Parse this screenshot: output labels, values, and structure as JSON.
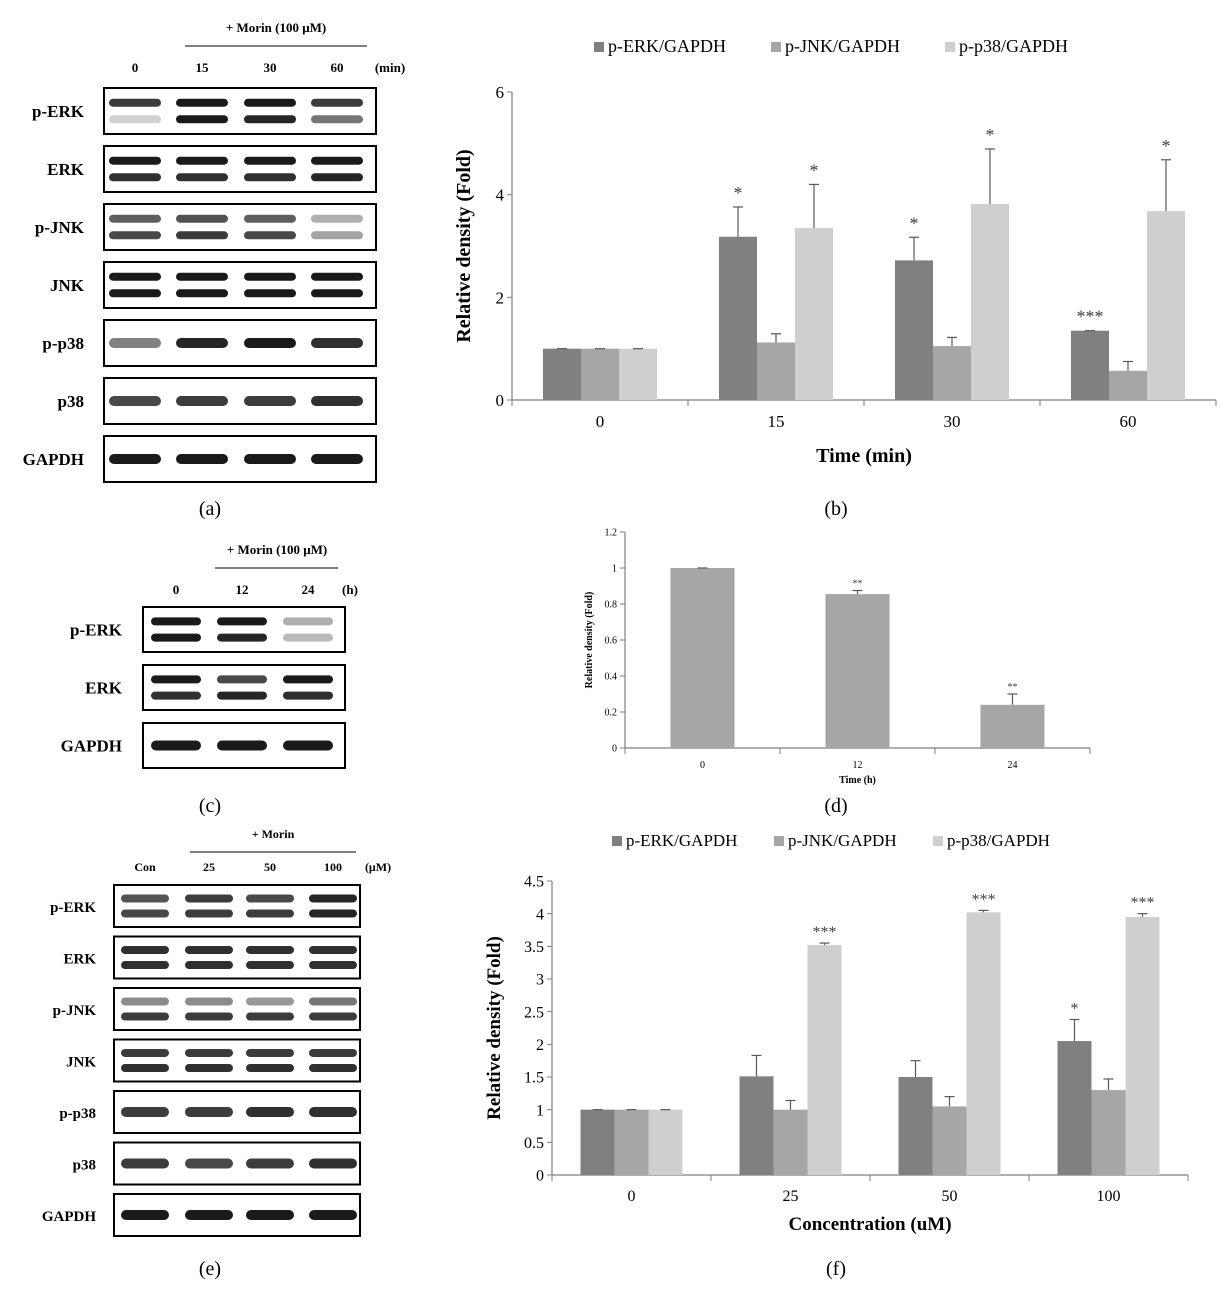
{
  "colors": {
    "erk": "#808080",
    "jnk": "#a6a6a6",
    "p38": "#cfcfcf",
    "axis": "#7f7f7f",
    "band": "#1a1a1a"
  },
  "panel_a": {
    "caption": "(a)",
    "treatment": "+ Morin (100 μM)",
    "unit": "(min)",
    "lanes": [
      "0",
      "15",
      "30",
      "60"
    ],
    "rows": [
      {
        "label": "p-ERK",
        "bands": 2,
        "intensity": [
          0.85,
          1.0,
          1.0,
          0.85
        ],
        "lower": [
          0.2,
          1.0,
          0.95,
          0.6
        ]
      },
      {
        "label": "ERK",
        "bands": 2,
        "intensity": [
          1,
          1,
          1,
          1
        ],
        "lower": [
          0.9,
          0.9,
          0.9,
          0.95
        ]
      },
      {
        "label": "p-JNK",
        "bands": 2,
        "intensity": [
          0.7,
          0.75,
          0.7,
          0.35
        ],
        "lower": [
          0.8,
          0.85,
          0.8,
          0.4
        ]
      },
      {
        "label": "JNK",
        "bands": 2,
        "intensity": [
          1,
          1,
          1,
          1
        ],
        "lower": [
          1,
          1,
          1,
          1
        ]
      },
      {
        "label": "p-p38",
        "bands": 1,
        "intensity": [
          0.55,
          0.95,
          1.0,
          0.9
        ],
        "lower": []
      },
      {
        "label": "p38",
        "bands": 1,
        "intensity": [
          0.8,
          0.85,
          0.85,
          0.9
        ],
        "lower": []
      },
      {
        "label": "GAPDH",
        "bands": 1,
        "intensity": [
          1,
          1,
          1,
          1
        ],
        "lower": []
      }
    ]
  },
  "panel_c": {
    "caption": "(c)",
    "treatment": "+ Morin (100 μM)",
    "unit": "(h)",
    "lanes": [
      "0",
      "12",
      "24"
    ],
    "rows": [
      {
        "label": "p-ERK",
        "bands": 2,
        "intensity": [
          1,
          1,
          0.35
        ],
        "lower": [
          1,
          0.95,
          0.3
        ]
      },
      {
        "label": "ERK",
        "bands": 2,
        "intensity": [
          1,
          0.8,
          1
        ],
        "lower": [
          0.9,
          0.95,
          0.9
        ]
      },
      {
        "label": "GAPDH",
        "bands": 1,
        "intensity": [
          1,
          1,
          1
        ],
        "lower": []
      }
    ]
  },
  "panel_e": {
    "caption": "(e)",
    "treatment": "+ Morin",
    "unit": "(μM)",
    "lanes": [
      "Con",
      "25",
      "50",
      "100"
    ],
    "rows": [
      {
        "label": "p-ERK",
        "bands": 2,
        "intensity": [
          0.75,
          0.85,
          0.8,
          0.95
        ],
        "lower": [
          0.8,
          0.85,
          0.85,
          0.95
        ]
      },
      {
        "label": "ERK",
        "bands": 2,
        "intensity": [
          0.9,
          0.9,
          0.9,
          0.9
        ],
        "lower": [
          0.9,
          0.9,
          0.9,
          0.9
        ]
      },
      {
        "label": "p-JNK",
        "bands": 2,
        "intensity": [
          0.5,
          0.5,
          0.45,
          0.6
        ],
        "lower": [
          0.85,
          0.85,
          0.85,
          0.85
        ]
      },
      {
        "label": "JNK",
        "bands": 2,
        "intensity": [
          0.85,
          0.85,
          0.85,
          0.85
        ],
        "lower": [
          0.9,
          0.9,
          0.9,
          0.9
        ]
      },
      {
        "label": "p-p38",
        "bands": 1,
        "intensity": [
          0.85,
          0.85,
          0.9,
          0.9
        ],
        "lower": []
      },
      {
        "label": "p38",
        "bands": 1,
        "intensity": [
          0.85,
          0.8,
          0.85,
          0.9
        ],
        "lower": []
      },
      {
        "label": "GAPDH",
        "bands": 1,
        "intensity": [
          1,
          1,
          1,
          1
        ],
        "lower": []
      }
    ]
  },
  "chart_data": [
    {
      "id": "b",
      "type": "bar",
      "caption": "(b)",
      "title": "",
      "xlabel": "Time (min)",
      "ylabel": "Relative density (Fold)",
      "categories": [
        "0",
        "15",
        "30",
        "60"
      ],
      "ylim": [
        0,
        6
      ],
      "yticks": [
        "0",
        "2",
        "4",
        "6"
      ],
      "ytick_values": [
        0,
        2,
        4,
        6
      ],
      "legend_position": "top",
      "series": [
        {
          "name": "p-ERK/GAPDH",
          "color_key": "erk",
          "values": [
            1.0,
            3.18,
            2.72,
            1.35
          ],
          "errors": [
            0.0,
            0.58,
            0.45,
            0.0
          ],
          "sig": [
            "",
            "*",
            "*",
            "***"
          ]
        },
        {
          "name": "p-JNK/GAPDH",
          "color_key": "jnk",
          "values": [
            1.0,
            1.12,
            1.05,
            0.57
          ],
          "errors": [
            0.0,
            0.17,
            0.17,
            0.18
          ],
          "sig": [
            "",
            "",
            "",
            ""
          ]
        },
        {
          "name": "p-p38/GAPDH",
          "color_key": "p38",
          "values": [
            1.0,
            3.35,
            3.82,
            3.68
          ],
          "errors": [
            0.0,
            0.85,
            1.07,
            1.0
          ],
          "sig": [
            "",
            "*",
            "*",
            "*"
          ]
        }
      ]
    },
    {
      "id": "d",
      "type": "bar",
      "caption": "(d)",
      "title": "",
      "xlabel": "Time (h)",
      "ylabel": "Relative density (Fold)",
      "categories": [
        "0",
        "12",
        "24"
      ],
      "ylim": [
        0,
        1.2
      ],
      "yticks": [
        "0",
        "0.2",
        "0.4",
        "0.6",
        "0.8",
        "1",
        "1.2"
      ],
      "ytick_values": [
        0,
        0.2,
        0.4,
        0.6,
        0.8,
        1.0,
        1.2
      ],
      "legend_position": "none",
      "series": [
        {
          "name": "p-ERK/GAPDH",
          "color_key": "jnk",
          "values": [
            1.0,
            0.855,
            0.24
          ],
          "errors": [
            0.0,
            0.02,
            0.06
          ],
          "sig": [
            "",
            "**",
            "**"
          ]
        }
      ]
    },
    {
      "id": "f",
      "type": "bar",
      "caption": "(f)",
      "title": "",
      "xlabel": "Concentration (uM)",
      "ylabel": "Relative density (Fold)",
      "categories": [
        "0",
        "25",
        "50",
        "100"
      ],
      "ylim": [
        0,
        4.5
      ],
      "yticks": [
        "0",
        "0.5",
        "1",
        "1.5",
        "2",
        "2.5",
        "3",
        "3.5",
        "4",
        "4.5"
      ],
      "ytick_values": [
        0,
        0.5,
        1,
        1.5,
        2,
        2.5,
        3,
        3.5,
        4,
        4.5
      ],
      "legend_position": "top",
      "series": [
        {
          "name": "p-ERK/GAPDH",
          "color_key": "erk",
          "values": [
            1.0,
            1.51,
            1.5,
            2.05
          ],
          "errors": [
            0.0,
            0.32,
            0.25,
            0.33
          ],
          "sig": [
            "",
            "",
            "",
            "*"
          ]
        },
        {
          "name": "p-JNK/GAPDH",
          "color_key": "jnk",
          "values": [
            1.0,
            1.0,
            1.05,
            1.3
          ],
          "errors": [
            0.0,
            0.14,
            0.15,
            0.17
          ],
          "sig": [
            "",
            "",
            "",
            ""
          ]
        },
        {
          "name": "p-p38/GAPDH",
          "color_key": "p38",
          "values": [
            1.0,
            3.52,
            4.02,
            3.95
          ],
          "errors": [
            0.0,
            0.03,
            0.03,
            0.05
          ],
          "sig": [
            "",
            "***",
            "***",
            "***"
          ]
        }
      ]
    }
  ]
}
